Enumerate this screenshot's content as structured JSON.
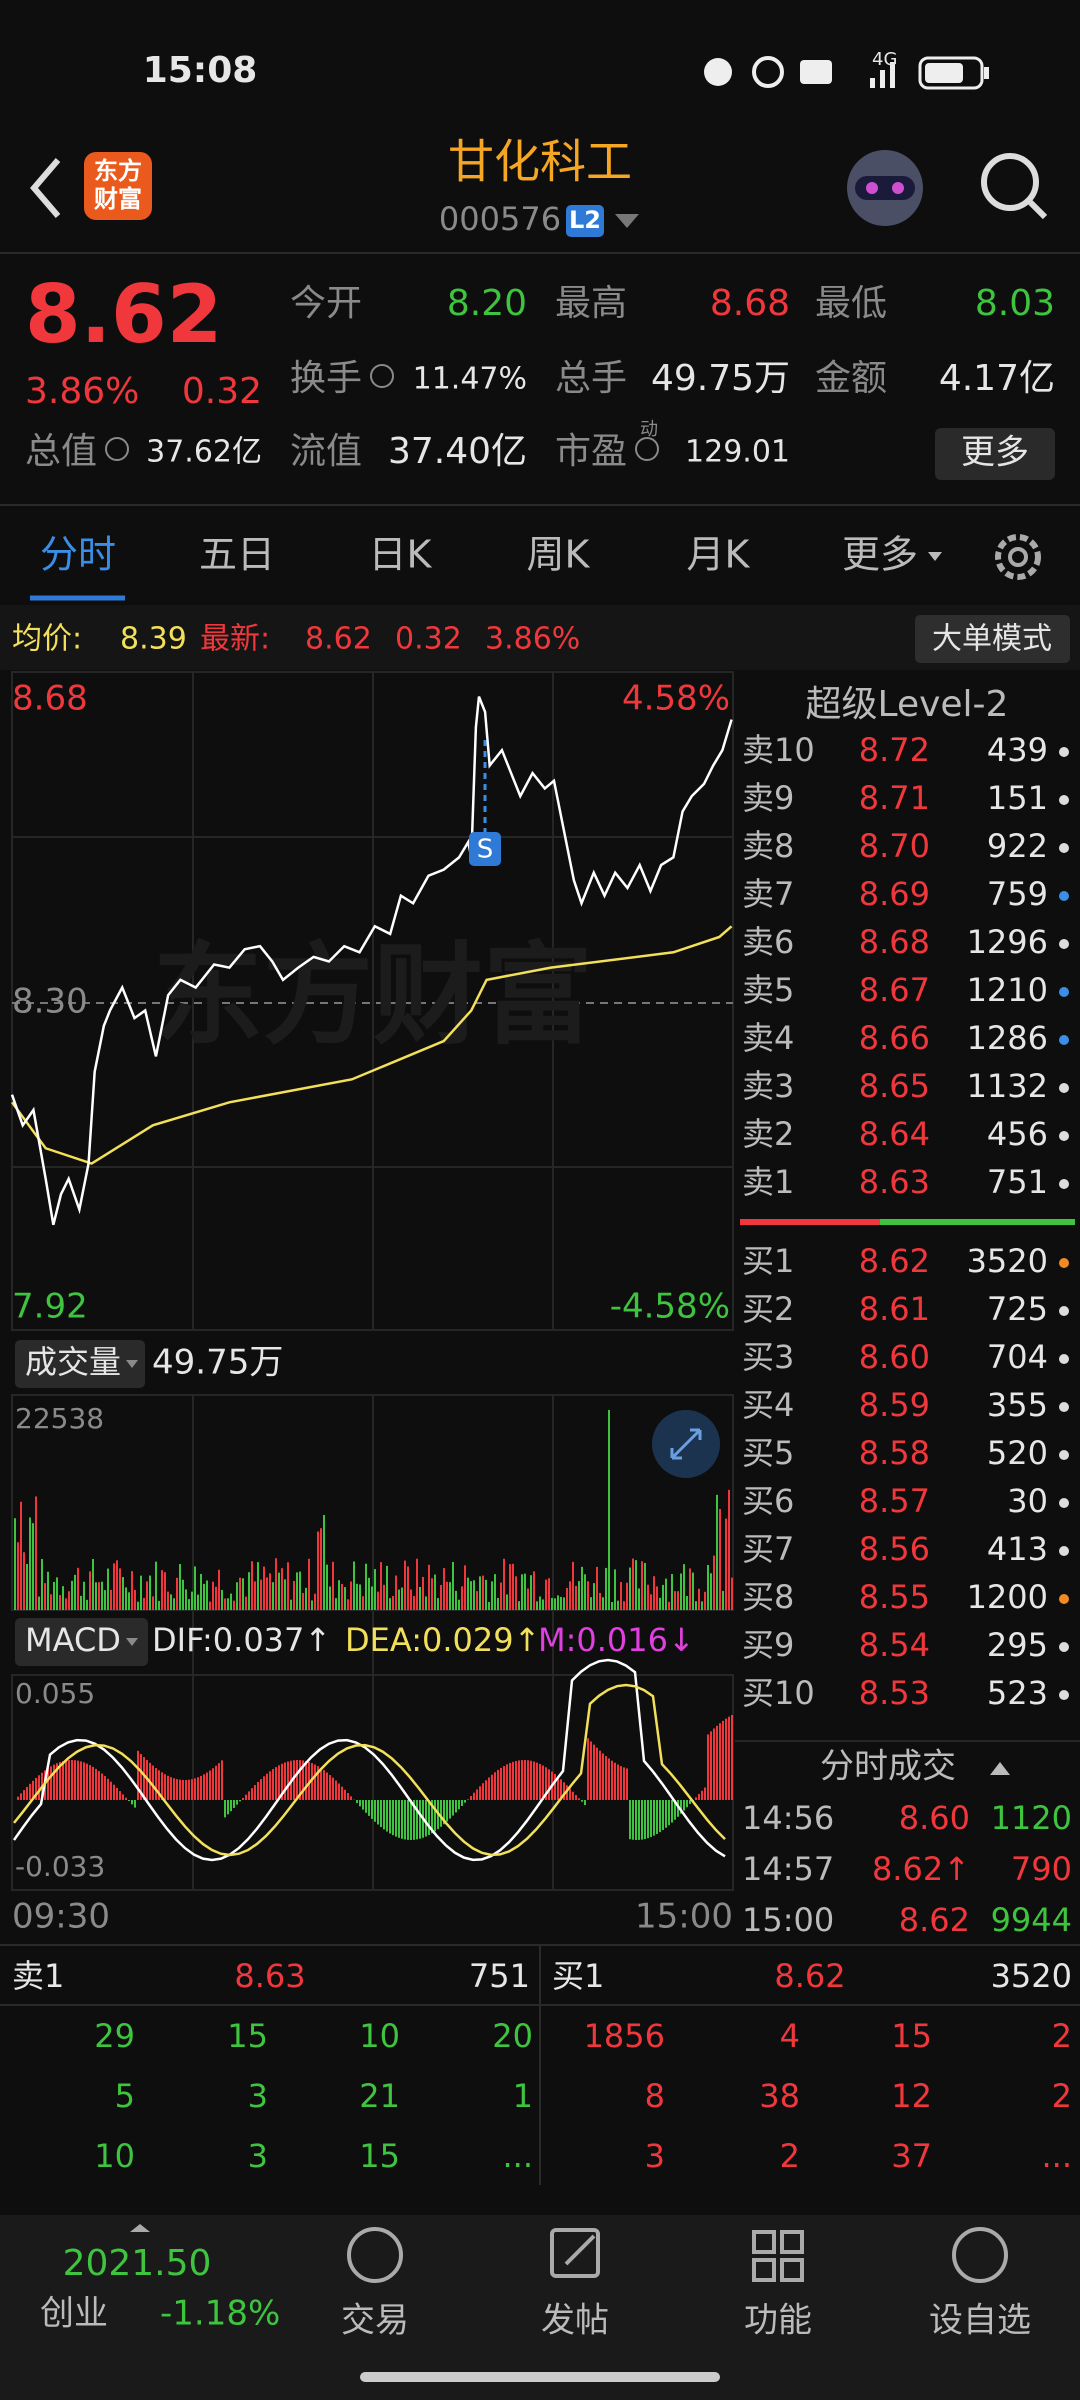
{
  "status": {
    "time": "15:08",
    "net": "4G"
  },
  "header": {
    "logo_top": "东方",
    "logo_bottom": "财富",
    "title": "甘化科工",
    "code": "000576",
    "badge": "L2"
  },
  "quote": {
    "price": "8.62",
    "change_pct": "3.86%",
    "change": "0.32",
    "pe_mark": "动",
    "more": "更多",
    "fields": [
      {
        "label": "今开",
        "value": "8.20",
        "color": "#3fc43f"
      },
      {
        "label": "最高",
        "value": "8.68",
        "color": "#f0383c"
      },
      {
        "label": "最低",
        "value": "8.03",
        "color": "#3fc43f"
      },
      {
        "label": "换手",
        "value": "11.47%",
        "color": "#e6e6e6"
      },
      {
        "label": "总手",
        "value": "49.75万",
        "color": "#e6e6e6"
      },
      {
        "label": "金额",
        "value": "4.17亿",
        "color": "#e6e6e6"
      },
      {
        "label": "总值",
        "value": "37.62亿",
        "color": "#e6e6e6"
      },
      {
        "label": "流值",
        "value": "37.40亿",
        "color": "#e6e6e6"
      },
      {
        "label": "市盈",
        "value": "129.01",
        "color": "#e6e6e6"
      }
    ]
  },
  "tabs": [
    "分时",
    "五日",
    "日K",
    "周K",
    "月K",
    "更多"
  ],
  "info": {
    "avg_label": "均价:",
    "avg": "8.39",
    "last_label": "最新:",
    "last": "8.62",
    "change": "0.32",
    "pct": "3.86%",
    "mode": "大单模式"
  },
  "chart": {
    "top_left": "8.68",
    "top_right": "4.58%",
    "mid": "8.30",
    "bottom_left": "7.92",
    "bottom_right": "-4.58%",
    "marker": "S",
    "watermark": "东方财富",
    "volume_label": "成交量",
    "volume": "49.75万",
    "volume_max": "22538",
    "macd_label": "MACD",
    "dif": "DIF:0.037↑",
    "dea": "DEA:0.029↑",
    "m": "M:0.016↓",
    "macd_top": "0.055",
    "macd_bottom": "-0.033",
    "time_start": "09:30",
    "time_end": "15:00"
  },
  "level2": {
    "title": "超级Level-2",
    "asks": [
      [
        "卖10",
        "8.72",
        "439",
        "#dddddd"
      ],
      [
        "卖9",
        "8.71",
        "151",
        "#dddddd"
      ],
      [
        "卖8",
        "8.70",
        "922",
        "#dddddd"
      ],
      [
        "卖7",
        "8.69",
        "759",
        "#3a8ee6"
      ],
      [
        "卖6",
        "8.68",
        "1296",
        "#dddddd"
      ],
      [
        "卖5",
        "8.67",
        "1210",
        "#3a8ee6"
      ],
      [
        "卖4",
        "8.66",
        "1286",
        "#3a8ee6"
      ],
      [
        "卖3",
        "8.65",
        "1132",
        "#dddddd"
      ],
      [
        "卖2",
        "8.64",
        "456",
        "#dddddd"
      ],
      [
        "卖1",
        "8.63",
        "751",
        "#dddddd"
      ]
    ],
    "bids": [
      [
        "买1",
        "8.62",
        "3520",
        "#f08a24"
      ],
      [
        "买2",
        "8.61",
        "725",
        "#dddddd"
      ],
      [
        "买3",
        "8.60",
        "704",
        "#dddddd"
      ],
      [
        "买4",
        "8.59",
        "355",
        "#dddddd"
      ],
      [
        "买5",
        "8.58",
        "520",
        "#dddddd"
      ],
      [
        "买6",
        "8.57",
        "30",
        "#dddddd"
      ],
      [
        "买7",
        "8.56",
        "413",
        "#dddddd"
      ],
      [
        "买8",
        "8.55",
        "1200",
        "#f08a24"
      ],
      [
        "买9",
        "8.54",
        "295",
        "#dddddd"
      ],
      [
        "买10",
        "8.53",
        "523",
        "#dddddd"
      ]
    ],
    "ticks_title": "分时成交",
    "ticks": [
      [
        "14:56",
        "8.60",
        "1120",
        "#3fc43f"
      ],
      [
        "14:57",
        "8.62↑",
        "790",
        "#f0383c"
      ],
      [
        "15:00",
        "8.62",
        "9944",
        "#3fc43f"
      ]
    ]
  },
  "queue": {
    "ask_label": "卖1",
    "ask_price": "8.63",
    "ask_vol": "751",
    "bid_label": "买1",
    "bid_price": "8.62",
    "bid_vol": "3520",
    "ask_rows": [
      [
        "29",
        "15",
        "10",
        "20"
      ],
      [
        "5",
        "3",
        "21",
        "1"
      ],
      [
        "10",
        "3",
        "15",
        "..."
      ]
    ],
    "bid_rows": [
      [
        "1856",
        "4",
        "15",
        "2"
      ],
      [
        "8",
        "38",
        "12",
        "2"
      ],
      [
        "3",
        "2",
        "37",
        "..."
      ]
    ]
  },
  "nav": {
    "index_value": "2021.50",
    "index_name": "创业",
    "index_pct": "-1.18%",
    "items": [
      "交易",
      "发帖",
      "功能",
      "设自选"
    ]
  }
}
